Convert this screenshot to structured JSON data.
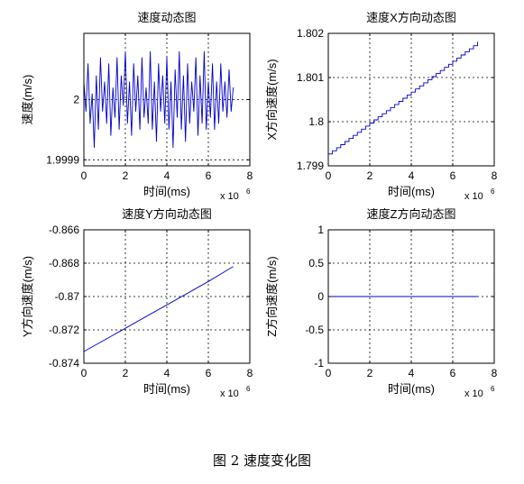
{
  "caption": "图 2  速度变化图",
  "chart_data": [
    {
      "type": "line",
      "title": "速度动态图",
      "xlabel": "时间(ms)",
      "ylabel": "速度(m/s)",
      "x_multiplier": "x 10",
      "x_multiplier_exp": "6",
      "xlim": [
        0,
        8
      ],
      "ylim": [
        1.99989,
        2.00011
      ],
      "xticks": [
        0,
        2,
        4,
        6,
        8
      ],
      "xtick_labels": [
        "0",
        "2",
        "4",
        "6",
        "8"
      ],
      "yticks": [
        1.9999,
        2.0
      ],
      "ytick_labels": [
        "1.9999",
        "2"
      ],
      "grid": true,
      "color": "#0000cc",
      "series": [
        {
          "x": [
            0,
            0.1,
            0.2,
            0.3,
            0.4,
            0.5,
            0.6,
            0.7,
            0.8,
            0.9,
            1.0,
            1.1,
            1.2,
            1.3,
            1.4,
            1.5,
            1.6,
            1.7,
            1.8,
            1.9,
            2.0,
            2.1,
            2.2,
            2.3,
            2.4,
            2.5,
            2.6,
            2.7,
            2.8,
            2.9,
            3.0,
            3.1,
            3.2,
            3.3,
            3.4,
            3.5,
            3.6,
            3.7,
            3.8,
            3.9,
            4.0,
            4.1,
            4.2,
            4.3,
            4.4,
            4.5,
            4.6,
            4.7,
            4.8,
            4.9,
            5.0,
            5.1,
            5.2,
            5.3,
            5.4,
            5.5,
            5.6,
            5.7,
            5.8,
            5.9,
            6.0,
            6.1,
            6.2,
            6.3,
            6.4,
            6.5,
            6.6,
            6.7,
            6.8,
            6.9,
            7.0,
            7.1,
            7.2
          ],
          "values": [
            2.00003,
            1.99998,
            2.00006,
            1.99996,
            2.00001,
            1.99992,
            2.00004,
            1.99995,
            2.00007,
            1.99998,
            2.00003,
            1.99996,
            2.00006,
            1.99994,
            2.00002,
            1.99997,
            2.00007,
            1.99995,
            2.00004,
            1.99999,
            2.00008,
            1.99996,
            2.00003,
            1.99994,
            2.00006,
            1.99998,
            2.00004,
            1.99995,
            2.00007,
            1.99997,
            2.00002,
            1.99996,
            2.00008,
            1.99995,
            2.00003,
            1.99993,
            2.00006,
            1.99998,
            2.00004,
            1.99996,
            2.00007,
            1.99995,
            2.00003,
            1.99992,
            2.00005,
            1.99997,
            2.00008,
            1.99995,
            2.00004,
            1.99993,
            2.00006,
            1.99996,
            2.00003,
            1.99998,
            2.00007,
            1.99994,
            2.00004,
            1.99996,
            2.00008,
            1.99995,
            2.00003,
            1.99997,
            2.00006,
            1.99995,
            2.00003,
            1.99996,
            2.00006,
            1.99998,
            2.00003,
            1.99997,
            2.00005,
            1.99998,
            2.00002
          ]
        }
      ]
    },
    {
      "type": "line",
      "title": "速度X方向动态图",
      "xlabel": "时间(ms)",
      "ylabel": "X方向速度(m/s)",
      "x_multiplier": "x 10",
      "x_multiplier_exp": "6",
      "xlim": [
        0,
        8
      ],
      "ylim": [
        1.799,
        1.802
      ],
      "xticks": [
        0,
        2,
        4,
        6,
        8
      ],
      "xtick_labels": [
        "0",
        "2",
        "4",
        "6",
        "8"
      ],
      "yticks": [
        1.799,
        1.8,
        1.801,
        1.802
      ],
      "ytick_labels": [
        "1.799",
        "1.8",
        "1.801",
        "1.802"
      ],
      "grid": true,
      "color": "#0000cc",
      "series": [
        {
          "x": [
            0,
            0.2,
            0.4,
            0.6,
            0.8,
            1.0,
            1.2,
            1.4,
            1.6,
            1.8,
            2.0,
            2.2,
            2.4,
            2.6,
            2.8,
            3.0,
            3.2,
            3.4,
            3.6,
            3.8,
            4.0,
            4.2,
            4.4,
            4.6,
            4.8,
            5.0,
            5.2,
            5.4,
            5.6,
            5.8,
            6.0,
            6.2,
            6.4,
            6.6,
            6.8,
            7.0,
            7.2
          ],
          "values": [
            1.79927,
            1.79934,
            1.79941,
            1.79948,
            1.79955,
            1.79962,
            1.79969,
            1.79976,
            1.79983,
            1.7999,
            1.79997,
            1.80004,
            1.80011,
            1.80018,
            1.80025,
            1.80032,
            1.80039,
            1.80046,
            1.80053,
            1.8006,
            1.80067,
            1.80074,
            1.80081,
            1.80088,
            1.80095,
            1.80102,
            1.80109,
            1.80116,
            1.80123,
            1.8013,
            1.80137,
            1.80144,
            1.80151,
            1.80158,
            1.80165,
            1.80172,
            1.80181
          ]
        }
      ]
    },
    {
      "type": "line",
      "title": "速度Y方向动态图",
      "xlabel": "时间(ms)",
      "ylabel": "Y方向速度(m/s)",
      "x_multiplier": "x 10",
      "x_multiplier_exp": "6",
      "xlim": [
        0,
        8
      ],
      "ylim": [
        -0.874,
        -0.866
      ],
      "xticks": [
        0,
        2,
        4,
        6,
        8
      ],
      "xtick_labels": [
        "0",
        "2",
        "4",
        "6",
        "8"
      ],
      "yticks": [
        -0.874,
        -0.872,
        -0.87,
        -0.868,
        -0.866
      ],
      "ytick_labels": [
        "-0.874",
        "-0.872",
        "-0.87",
        "-0.868",
        "-0.866"
      ],
      "grid": true,
      "color": "#0000cc",
      "series": [
        {
          "x": [
            0,
            1,
            2,
            3,
            4,
            5,
            6,
            7.2
          ],
          "values": [
            -0.8733,
            -0.8726,
            -0.8719,
            -0.8712,
            -0.8705,
            -0.8698,
            -0.8691,
            -0.8682
          ]
        }
      ]
    },
    {
      "type": "line",
      "title": "速度Z方向动态图",
      "xlabel": "时间(ms)",
      "ylabel": "Z方向速度(m/s)",
      "x_multiplier": "x 10",
      "x_multiplier_exp": "6",
      "xlim": [
        0,
        8
      ],
      "ylim": [
        -1,
        1
      ],
      "xticks": [
        0,
        2,
        4,
        6,
        8
      ],
      "xtick_labels": [
        "0",
        "2",
        "4",
        "6",
        "8"
      ],
      "yticks": [
        -1,
        -0.5,
        0,
        0.5,
        1
      ],
      "ytick_labels": [
        "-1",
        "-0.5",
        "0",
        "0.5",
        "1"
      ],
      "grid": true,
      "color": "#0000cc",
      "series": [
        {
          "x": [
            0,
            7.2
          ],
          "values": [
            0,
            0
          ]
        }
      ]
    }
  ]
}
